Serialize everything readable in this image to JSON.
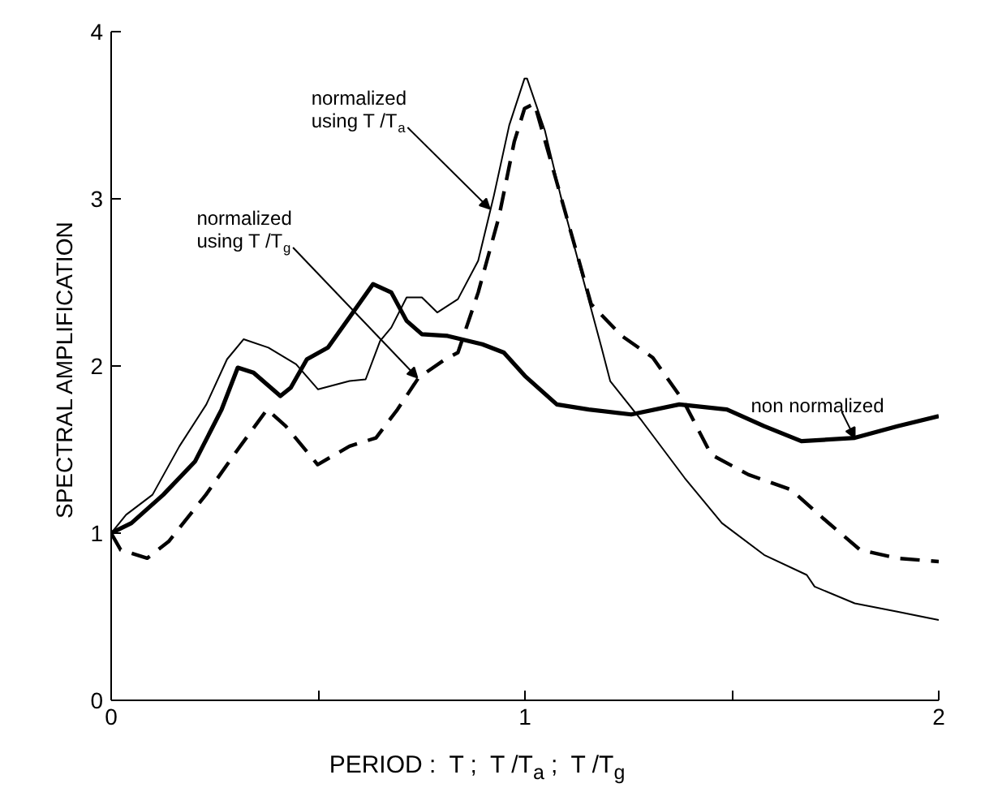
{
  "chart_data": {
    "type": "line",
    "xlabel": "PERIOD :  T ;  T /T$_{a}$ ;  T /T$_{g}$",
    "ylabel": "SPECTRAL  AMPLIFICATION",
    "xlim": [
      0,
      2
    ],
    "ylim": [
      0,
      4
    ],
    "xticks": [
      0,
      {
        "value": 0.5,
        "label": null
      },
      1,
      {
        "value": 1.5,
        "label": null
      },
      2
    ],
    "yticks": [
      0,
      1,
      2,
      3,
      4
    ],
    "grid": false,
    "series": [
      {
        "color": "#000000",
        "line_style": "solid",
        "x": [
          0,
          0.036,
          0.1,
          0.165,
          0.23,
          0.28,
          0.32,
          0.38,
          0.447,
          0.5,
          0.576,
          0.615,
          0.65,
          0.677,
          0.714,
          0.751,
          0.788,
          0.838,
          0.887,
          0.925,
          0.962,
          0.999,
          1.005,
          1.048,
          1.086,
          1.135,
          1.185,
          1.206,
          1.283,
          1.386,
          1.476,
          1.578,
          1.681,
          1.7,
          1.797,
          1.9,
          2.0
        ],
        "values": [
          1.0,
          1.11,
          1.23,
          1.52,
          1.77,
          2.04,
          2.16,
          2.11,
          2.01,
          1.86,
          1.91,
          1.92,
          2.15,
          2.23,
          2.41,
          2.41,
          2.32,
          2.4,
          2.63,
          3.02,
          3.44,
          3.72,
          3.72,
          3.41,
          3.02,
          2.57,
          2.11,
          1.91,
          1.67,
          1.33,
          1.06,
          0.87,
          0.75,
          0.68,
          0.58,
          0.53,
          0.48
        ]
      },
      {
        "color": "#000000",
        "line_style": "solid",
        "x": [
          0,
          0.049,
          0.126,
          0.203,
          0.267,
          0.306,
          0.344,
          0.409,
          0.434,
          0.473,
          0.524,
          0.59,
          0.633,
          0.677,
          0.714,
          0.751,
          0.813,
          0.897,
          0.949,
          1.0,
          1.077,
          1.154,
          1.257,
          1.373,
          1.488,
          1.578,
          1.668,
          1.797,
          1.9,
          2.0
        ],
        "values": [
          1.0,
          1.06,
          1.23,
          1.43,
          1.74,
          1.99,
          1.96,
          1.82,
          1.87,
          2.04,
          2.11,
          2.34,
          2.49,
          2.44,
          2.27,
          2.19,
          2.18,
          2.13,
          2.08,
          1.94,
          1.77,
          1.74,
          1.71,
          1.77,
          1.74,
          1.64,
          1.55,
          1.57,
          1.64,
          1.7
        ]
      },
      {
        "color": "#000000",
        "line_style": "dashed",
        "x": [
          0,
          0.023,
          0.087,
          0.139,
          0.229,
          0.306,
          0.377,
          0.422,
          0.499,
          0.576,
          0.64,
          0.692,
          0.743,
          0.807,
          0.838,
          0.887,
          0.937,
          0.974,
          0.999,
          1.023,
          1.086,
          1.16,
          1.234,
          1.309,
          1.383,
          1.45,
          1.54,
          1.643,
          1.72,
          1.81,
          1.9,
          2.0
        ],
        "values": [
          1.0,
          0.9,
          0.85,
          0.95,
          1.23,
          1.5,
          1.74,
          1.64,
          1.41,
          1.52,
          1.57,
          1.74,
          1.93,
          2.04,
          2.08,
          2.44,
          2.89,
          3.34,
          3.54,
          3.57,
          3.02,
          2.37,
          2.18,
          2.05,
          1.79,
          1.47,
          1.35,
          1.26,
          1.09,
          0.9,
          0.85,
          0.83
        ]
      }
    ],
    "annotations": [
      {
        "text": "normalized\nusing T /T$_{a}$",
        "x": 0.915,
        "y": 2.94
      },
      {
        "text": "normalized\nusing T /T$_{g}$",
        "x": 0.74,
        "y": 1.93
      },
      {
        "text": "non normalized",
        "x": 1.797,
        "y": 1.57
      }
    ]
  }
}
